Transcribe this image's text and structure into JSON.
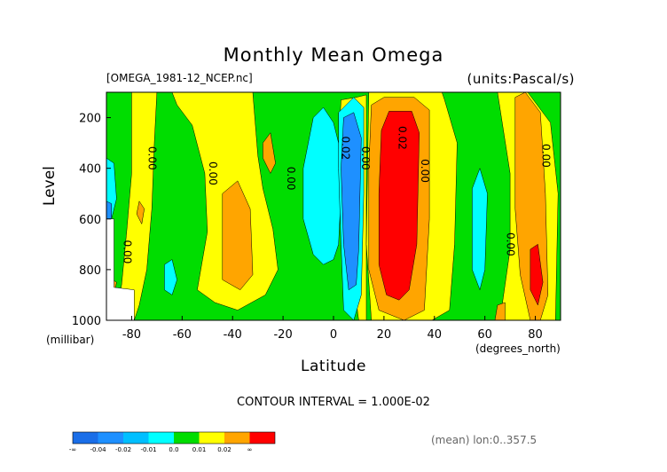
{
  "chart_data": {
    "type": "heatmap",
    "title": "Monthly Mean Omega",
    "file_label": "[OMEGA_1981-12_NCEP.nc]",
    "units_label": "(units:Pascal/s)",
    "ylabel": "Level",
    "ylabel_units": "(millibar)",
    "xlabel": "Latitude",
    "xlabel_units": "(degrees_north)",
    "xlim": [
      -90,
      90
    ],
    "ylim": [
      1000,
      100
    ],
    "x_ticks": [
      -80,
      -60,
      -40,
      -20,
      0,
      20,
      40,
      60,
      80
    ],
    "y_ticks": [
      200,
      400,
      600,
      800,
      1000
    ],
    "contour_interval_text": "CONTOUR INTERVAL = 1.000E-02",
    "mean_note": "(mean) lon:0..357.5",
    "contour_labels": [
      {
        "text": "0.00",
        "x": -72,
        "y": 360
      },
      {
        "text": "0.00",
        "x": -48,
        "y": 420
      },
      {
        "text": "0.00",
        "x": -17,
        "y": 440
      },
      {
        "text": "0.02",
        "x": 4.5,
        "y": 320
      },
      {
        "text": "0.00",
        "x": 12.5,
        "y": 360
      },
      {
        "text": "0.02",
        "x": 27,
        "y": 280
      },
      {
        "text": "0.00",
        "x": 36,
        "y": 410
      },
      {
        "text": "0.00",
        "x": 84,
        "y": 350
      },
      {
        "text": "0.00",
        "x": -82,
        "y": 730
      },
      {
        "text": "0.00",
        "x": 70,
        "y": 700
      }
    ],
    "legend": {
      "bins": [
        {
          "range": "< -0.04",
          "color": "#1a6ee8"
        },
        {
          "range": "-0.04 to -0.03",
          "color": "#1e90ff"
        },
        {
          "range": "-0.03 to -0.02",
          "color": "#00bfff"
        },
        {
          "range": "-0.02 to -0.01",
          "color": "#00ffff"
        },
        {
          "range": "-0.01 to 0.0",
          "color": "#00dd00"
        },
        {
          "range": "0.0 to 0.01",
          "color": "#ffff00"
        },
        {
          "range": "0.01 to 0.02",
          "color": "#ffa500"
        },
        {
          "range": "> 0.02",
          "color": "#ff0000"
        }
      ],
      "tick_labels": [
        "-∞",
        "-0.04",
        "-0.02",
        "-0.01",
        "0.0",
        "0.01",
        "0.02",
        "∞"
      ]
    },
    "regions": [
      {
        "fill": "#00dd00",
        "pts": [
          [
            -90,
            100
          ],
          [
            90,
            100
          ],
          [
            90,
            1000
          ],
          [
            -90,
            1000
          ]
        ]
      },
      {
        "fill": "#ffff00",
        "pts": [
          [
            -80,
            100
          ],
          [
            -70,
            100
          ],
          [
            -71,
            300
          ],
          [
            -72,
            560
          ],
          [
            -74,
            800
          ],
          [
            -77,
            940
          ],
          [
            -79,
            1000
          ],
          [
            -87,
            1000
          ],
          [
            -84,
            860
          ],
          [
            -82,
            650
          ],
          [
            -80,
            420
          ]
        ]
      },
      {
        "fill": "#ffff00",
        "pts": [
          [
            -64,
            100
          ],
          [
            -32,
            100
          ],
          [
            -30,
            350
          ],
          [
            -28,
            480
          ],
          [
            -24,
            640
          ],
          [
            -22,
            800
          ],
          [
            -27,
            900
          ],
          [
            -38,
            960
          ],
          [
            -47,
            930
          ],
          [
            -54,
            880
          ],
          [
            -50,
            650
          ],
          [
            -51,
            420
          ],
          [
            -56,
            230
          ],
          [
            -62,
            150
          ]
        ]
      },
      {
        "fill": "#ffff00",
        "pts": [
          [
            3,
            130
          ],
          [
            9,
            120
          ],
          [
            13,
            110
          ],
          [
            13,
            1000
          ],
          [
            10,
            1000
          ],
          [
            5,
            620
          ],
          [
            2,
            300
          ]
        ]
      },
      {
        "fill": "#ffff00",
        "pts": [
          [
            14,
            100
          ],
          [
            43,
            100
          ],
          [
            44,
            130
          ],
          [
            49,
            300
          ],
          [
            48,
            700
          ],
          [
            46,
            960
          ],
          [
            39,
            1000
          ],
          [
            15,
            1000
          ],
          [
            13,
            700
          ]
        ]
      },
      {
        "fill": "#ffff00",
        "pts": [
          [
            65,
            100
          ],
          [
            77,
            100
          ],
          [
            86,
            220
          ],
          [
            89,
            500
          ],
          [
            88,
            1000
          ],
          [
            66,
            1000
          ],
          [
            70,
            720
          ],
          [
            70,
            420
          ]
        ]
      },
      {
        "fill": "#ffff00",
        "pts": [
          [
            -90,
            820
          ],
          [
            -87,
            860
          ],
          [
            -85,
            980
          ],
          [
            -90,
            1000
          ]
        ]
      },
      {
        "fill": "#ffa500",
        "pts": [
          [
            15,
            150
          ],
          [
            20,
            120
          ],
          [
            32,
            120
          ],
          [
            38,
            170
          ],
          [
            38,
            600
          ],
          [
            36,
            960
          ],
          [
            28,
            1000
          ],
          [
            18,
            960
          ],
          [
            14,
            800
          ],
          [
            14,
            400
          ]
        ]
      },
      {
        "fill": "#ff0000",
        "pts": [
          [
            19,
            250
          ],
          [
            22,
            175
          ],
          [
            31,
            175
          ],
          [
            34,
            260
          ],
          [
            33,
            700
          ],
          [
            30,
            880
          ],
          [
            26,
            920
          ],
          [
            21,
            900
          ],
          [
            18,
            780
          ],
          [
            18,
            500
          ]
        ]
      },
      {
        "fill": "#ffa500",
        "pts": [
          [
            72,
            120
          ],
          [
            76,
            100
          ],
          [
            82,
            180
          ],
          [
            84,
            500
          ],
          [
            85,
            900
          ],
          [
            82,
            1000
          ],
          [
            78,
            1000
          ],
          [
            74,
            820
          ],
          [
            72,
            560
          ]
        ]
      },
      {
        "fill": "#ff0000",
        "pts": [
          [
            78,
            720
          ],
          [
            81,
            700
          ],
          [
            83,
            850
          ],
          [
            81,
            940
          ],
          [
            78,
            880
          ]
        ]
      },
      {
        "fill": "#ffa500",
        "pts": [
          [
            -44,
            500
          ],
          [
            -38,
            450
          ],
          [
            -33,
            560
          ],
          [
            -32,
            820
          ],
          [
            -37,
            880
          ],
          [
            -44,
            840
          ]
        ]
      },
      {
        "fill": "#ffa500",
        "pts": [
          [
            -28,
            300
          ],
          [
            -25,
            260
          ],
          [
            -23,
            380
          ],
          [
            -25,
            420
          ],
          [
            -28,
            360
          ]
        ]
      },
      {
        "fill": "#ffa500",
        "pts": [
          [
            -77,
            530
          ],
          [
            -75,
            560
          ],
          [
            -76,
            620
          ],
          [
            -78,
            580
          ]
        ]
      },
      {
        "fill": "#ffa500",
        "pts": [
          [
            -89,
            830
          ],
          [
            -86,
            850
          ],
          [
            -87,
            900
          ],
          [
            -89,
            880
          ]
        ]
      },
      {
        "fill": "#ffa500",
        "pts": [
          [
            65,
            940
          ],
          [
            68,
            930
          ],
          [
            68,
            1000
          ],
          [
            64,
            1000
          ]
        ]
      },
      {
        "fill": "#00ffff",
        "pts": [
          [
            -8,
            200
          ],
          [
            -4,
            160
          ],
          [
            0,
            220
          ],
          [
            2,
            300
          ],
          [
            3,
            500
          ],
          [
            2,
            700
          ],
          [
            0,
            760
          ],
          [
            -4,
            780
          ],
          [
            -8,
            740
          ],
          [
            -12,
            600
          ],
          [
            -12,
            400
          ]
        ]
      },
      {
        "fill": "#00ffff",
        "pts": [
          [
            2,
            180
          ],
          [
            8,
            120
          ],
          [
            12,
            160
          ],
          [
            12,
            500
          ],
          [
            11,
            900
          ],
          [
            8,
            1000
          ],
          [
            4,
            960
          ],
          [
            3,
            700
          ],
          [
            2,
            400
          ]
        ]
      },
      {
        "fill": "#1e90ff",
        "pts": [
          [
            4,
            200
          ],
          [
            8,
            180
          ],
          [
            11,
            280
          ],
          [
            10,
            720
          ],
          [
            9,
            860
          ],
          [
            6,
            880
          ],
          [
            4,
            700
          ],
          [
            3,
            400
          ]
        ]
      },
      {
        "fill": "#00ffff",
        "pts": [
          [
            55,
            480
          ],
          [
            58,
            400
          ],
          [
            61,
            500
          ],
          [
            60,
            800
          ],
          [
            58,
            880
          ],
          [
            55,
            800
          ]
        ]
      },
      {
        "fill": "#00ffff",
        "pts": [
          [
            -90,
            360
          ],
          [
            -87,
            380
          ],
          [
            -86,
            520
          ],
          [
            -88,
            600
          ],
          [
            -90,
            580
          ]
        ]
      },
      {
        "fill": "#1e90ff",
        "pts": [
          [
            -90,
            530
          ],
          [
            -88,
            540
          ],
          [
            -88,
            600
          ],
          [
            -90,
            600
          ]
        ]
      },
      {
        "fill": "#00ffff",
        "pts": [
          [
            -67,
            780
          ],
          [
            -64,
            760
          ],
          [
            -62,
            840
          ],
          [
            -64,
            900
          ],
          [
            -67,
            880
          ]
        ]
      },
      {
        "fill": "#ffffff",
        "pts": [
          [
            -90,
            600
          ],
          [
            -87,
            600
          ],
          [
            -87,
            870
          ],
          [
            -79,
            880
          ],
          [
            -79,
            1000
          ],
          [
            -90,
            1000
          ]
        ]
      }
    ]
  }
}
